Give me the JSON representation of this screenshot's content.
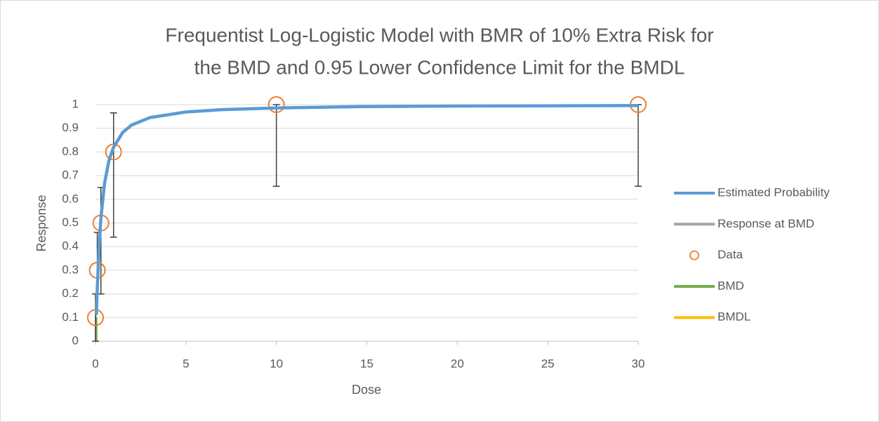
{
  "chart_data": {
    "type": "line",
    "title": [
      "Frequentist Log-Logistic Model with BMR of 10% Extra Risk for",
      "the BMD and 0.95 Lower Confidence Limit for the BMDL"
    ],
    "x_label": "Dose",
    "y_label": "Response",
    "xlim": [
      0,
      30
    ],
    "xticks": [
      0,
      5,
      10,
      15,
      20,
      25,
      30
    ],
    "ylim": [
      0,
      1
    ],
    "yticks": [
      0,
      0.1,
      0.2,
      0.3,
      0.4,
      0.5,
      0.6,
      0.7,
      0.8,
      0.9,
      1
    ],
    "grid": true,
    "legend": "right",
    "series": [
      {
        "name": "Estimated Probability",
        "kind": "line",
        "color": "#5b9bd5",
        "x": [
          0.05,
          0.1,
          0.2,
          0.3,
          0.5,
          0.75,
          1,
          1.5,
          2,
          3,
          5,
          7,
          10,
          15,
          20,
          30
        ],
        "values": [
          0.112,
          0.225,
          0.4,
          0.52,
          0.667,
          0.766,
          0.82,
          0.882,
          0.914,
          0.945,
          0.969,
          0.979,
          0.986,
          0.992,
          0.994,
          0.996
        ]
      },
      {
        "name": "Response at BMD",
        "kind": "line",
        "color": "#a5a5a5",
        "x": [
          0,
          0.045
        ],
        "values": [
          0.1,
          0.1
        ]
      },
      {
        "name": "Data",
        "kind": "marker",
        "color": "#ed7d31",
        "x": [
          0,
          0.1,
          0.3,
          1,
          10,
          30
        ],
        "values": [
          0.1,
          0.3,
          0.5,
          0.8,
          1,
          1
        ],
        "error_low": [
          0,
          0.2,
          0.2,
          0.44,
          0.655,
          0.655
        ],
        "error_high": [
          0.2,
          0.46,
          0.65,
          0.965,
          1,
          1
        ],
        "error_color": "#404040"
      },
      {
        "name": "BMD",
        "kind": "line",
        "color": "#70ad47",
        "x": [
          0.045,
          0.045
        ],
        "values": [
          0,
          0.1
        ]
      },
      {
        "name": "BMDL",
        "kind": "line",
        "color": "#ffc000",
        "x": [
          0.02,
          0.02
        ],
        "values": [
          0,
          0.2
        ]
      }
    ]
  }
}
